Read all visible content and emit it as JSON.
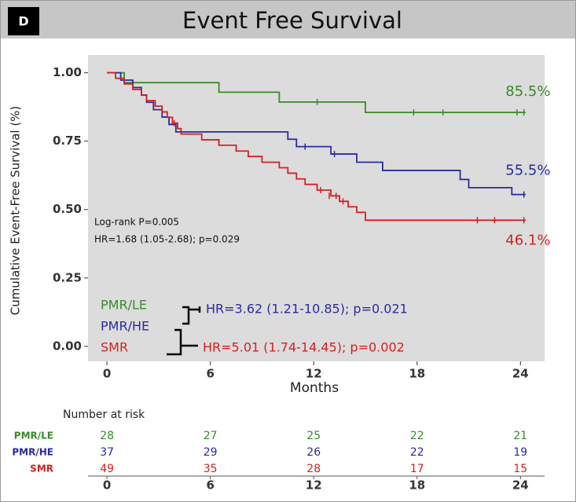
{
  "panel_label": "D",
  "chart_data": {
    "type": "survival",
    "title": "Event Free Survival",
    "x_label": "Months",
    "y_label": "Cumulative Event-Free Survival (%)",
    "xlim": [
      -1.1,
      25.4
    ],
    "ylim": [
      -0.055,
      1.065
    ],
    "xticks": [
      0,
      6,
      12,
      18,
      24
    ],
    "yticks": [
      {
        "value": 0,
        "label": "0.00"
      },
      {
        "value": 0.25,
        "label": "0.25"
      },
      {
        "value": 0.5,
        "label": "0.50"
      },
      {
        "value": 0.75,
        "label": "0.75"
      },
      {
        "value": 1,
        "label": "1.00"
      }
    ],
    "series": [
      {
        "name": "PMR/LE",
        "color": "#3a8a2a",
        "x": [
          0,
          1,
          6.5,
          10,
          15,
          24.3
        ],
        "values": [
          1,
          0.964,
          0.929,
          0.893,
          0.855,
          0.855
        ],
        "censored": {
          "x": [
            12.2,
            17.8,
            19.5,
            23.8,
            24.2
          ],
          "values": [
            0.893,
            0.855,
            0.855,
            0.855,
            0.855
          ]
        },
        "end_label": "85.5%"
      },
      {
        "name": "PMR/HE",
        "color": "#2a2aa0",
        "x": [
          0,
          0.8,
          1.5,
          2,
          2.3,
          2.7,
          3.2,
          3.6,
          4,
          10.5,
          11,
          13,
          14.5,
          16,
          20.5,
          21,
          23.5,
          24.3
        ],
        "values": [
          1,
          0.973,
          0.946,
          0.919,
          0.892,
          0.865,
          0.838,
          0.811,
          0.784,
          0.757,
          0.73,
          0.703,
          0.673,
          0.643,
          0.61,
          0.58,
          0.555,
          0.555
        ],
        "censored": {
          "x": [
            11.5,
            13.2,
            24.2
          ],
          "values": [
            0.73,
            0.703,
            0.555
          ]
        },
        "end_label": "55.5%"
      },
      {
        "name": "SMR",
        "color": "#d42020",
        "x": [
          0,
          0.5,
          1,
          1.5,
          2,
          2.3,
          2.8,
          3.2,
          3.5,
          3.8,
          4.1,
          4.3,
          5.5,
          6.5,
          7.5,
          8.2,
          9,
          10,
          10.5,
          11,
          11.5,
          12.2,
          13,
          13.5,
          14,
          14.5,
          15,
          24.3
        ],
        "values": [
          1,
          0.98,
          0.959,
          0.939,
          0.918,
          0.898,
          0.878,
          0.857,
          0.837,
          0.816,
          0.796,
          0.776,
          0.755,
          0.735,
          0.714,
          0.694,
          0.673,
          0.653,
          0.633,
          0.612,
          0.592,
          0.571,
          0.55,
          0.53,
          0.51,
          0.49,
          0.461,
          0.461
        ],
        "censored": {
          "x": [
            3.9,
            12.4,
            12.9,
            13.3,
            13.7,
            21.5,
            22.5,
            24.2
          ],
          "values": [
            0.816,
            0.571,
            0.55,
            0.55,
            0.53,
            0.461,
            0.461,
            0.461
          ]
        },
        "end_label": "46.1%"
      }
    ],
    "annotations": [
      "Log-rank  P=0.005",
      "HR=1.68 (1.05-2.68); p=0.029"
    ],
    "comparisons": [
      "HR=3.62 (1.21-10.85); p=0.021",
      "HR=5.01 (1.74-14.45); p=0.002"
    ],
    "risk_table": {
      "title": "Number at risk",
      "rows": [
        [
          28,
          27,
          25,
          22,
          21
        ],
        [
          37,
          29,
          26,
          22,
          19
        ],
        [
          49,
          35,
          28,
          17,
          15
        ]
      ]
    }
  }
}
